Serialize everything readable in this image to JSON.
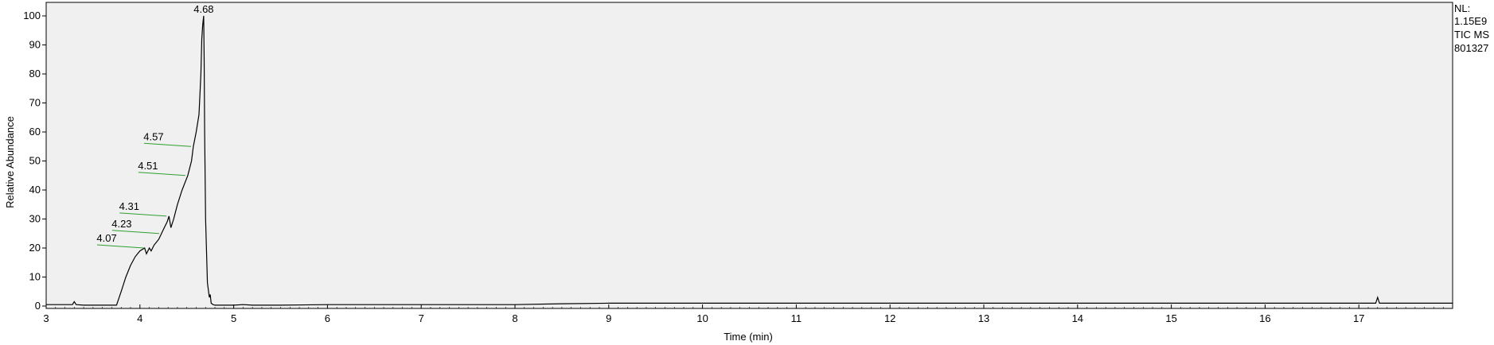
{
  "chart_data": {
    "type": "line",
    "title": "",
    "xlabel": "Time (min)",
    "ylabel": "Relative Abundance",
    "xlim": [
      3.0,
      18.0
    ],
    "ylim": [
      0,
      100
    ],
    "x_ticks": [
      3,
      4,
      5,
      6,
      7,
      8,
      9,
      10,
      11,
      12,
      13,
      14,
      15,
      16,
      17
    ],
    "y_ticks": [
      0,
      10,
      20,
      30,
      40,
      50,
      60,
      70,
      80,
      90,
      100
    ],
    "grid": false,
    "background_color": "#f0f0f0",
    "line_color": "#000000",
    "annotation_color": "#2e9e2e",
    "info": [
      "NL:",
      "1.15E9",
      "TIC  MS",
      "801327"
    ],
    "peak_labels": [
      {
        "label": "4.68",
        "x": 4.68,
        "y": 100
      },
      {
        "label": "4.57",
        "x": 4.57,
        "y": 55
      },
      {
        "label": "4.51",
        "x": 4.51,
        "y": 45
      },
      {
        "label": "4.31",
        "x": 4.31,
        "y": 31
      },
      {
        "label": "4.23",
        "x": 4.23,
        "y": 25
      },
      {
        "label": "4.07",
        "x": 4.07,
        "y": 20
      }
    ],
    "series": [
      {
        "x": [
          3.0,
          3.1,
          3.2,
          3.28,
          3.3,
          3.32,
          3.4,
          3.5,
          3.6,
          3.7,
          3.75,
          3.8,
          3.85,
          3.9,
          3.95,
          4.0,
          4.05,
          4.07,
          4.1,
          4.12,
          4.15,
          4.2,
          4.23,
          4.26,
          4.29,
          4.31,
          4.33,
          4.36,
          4.4,
          4.45,
          4.51,
          4.55,
          4.57,
          4.6,
          4.63,
          4.65,
          4.66,
          4.67,
          4.68,
          4.685,
          4.69,
          4.7,
          4.72,
          4.74,
          4.75,
          4.76,
          4.78,
          4.8,
          4.9,
          5.0,
          5.1,
          5.2,
          5.5,
          6.0,
          7.0,
          8.0,
          8.5,
          9.0,
          10.0,
          12.0,
          14.0,
          16.0,
          17.0,
          17.18,
          17.2,
          17.22,
          17.5,
          18.0
        ],
        "y": [
          0.5,
          0.5,
          0.5,
          0.5,
          1.5,
          0.5,
          0.3,
          0.3,
          0.3,
          0.3,
          0.3,
          5,
          10,
          14,
          17,
          19,
          20,
          18,
          20,
          19,
          21,
          23,
          25,
          27,
          29,
          31,
          27,
          30,
          35,
          40,
          45,
          50,
          55,
          60,
          66,
          80,
          92,
          97,
          100,
          85,
          60,
          30,
          8,
          3,
          4,
          1,
          0.5,
          0.3,
          0.3,
          0.3,
          0.5,
          0.3,
          0.3,
          0.5,
          0.5,
          0.5,
          0.8,
          1.0,
          1.0,
          1.0,
          1.0,
          1.0,
          1.0,
          1.0,
          3.0,
          1.0,
          1.0,
          1.0
        ]
      }
    ]
  }
}
